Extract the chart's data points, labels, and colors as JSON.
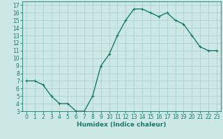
{
  "x": [
    0,
    1,
    2,
    3,
    4,
    5,
    6,
    7,
    8,
    9,
    10,
    11,
    12,
    13,
    14,
    15,
    16,
    17,
    18,
    19,
    20,
    21,
    22,
    23
  ],
  "y": [
    7,
    7,
    6.5,
    5,
    4,
    4,
    3,
    3,
    5,
    9,
    10.5,
    13,
    15,
    16.5,
    16.5,
    16,
    15.5,
    16,
    15,
    14.5,
    13,
    11.5,
    11,
    11
  ],
  "line_color": "#1a7a6a",
  "marker": "+",
  "bg_color": "#cce8e4",
  "grid_color": "#aacfcb",
  "xlabel": "Humidex (Indice chaleur)",
  "xlim": [
    -0.5,
    23.5
  ],
  "ylim": [
    3,
    17.5
  ],
  "yticks": [
    3,
    4,
    5,
    6,
    7,
    8,
    9,
    10,
    11,
    12,
    13,
    14,
    15,
    16,
    17
  ],
  "xticks": [
    0,
    1,
    2,
    3,
    4,
    5,
    6,
    7,
    8,
    9,
    10,
    11,
    12,
    13,
    14,
    15,
    16,
    17,
    18,
    19,
    20,
    21,
    22,
    23
  ],
  "tick_fontsize": 5.5,
  "label_fontsize": 6.5,
  "line_width": 1.0,
  "marker_size": 3.5,
  "marker_edge_width": 0.8
}
